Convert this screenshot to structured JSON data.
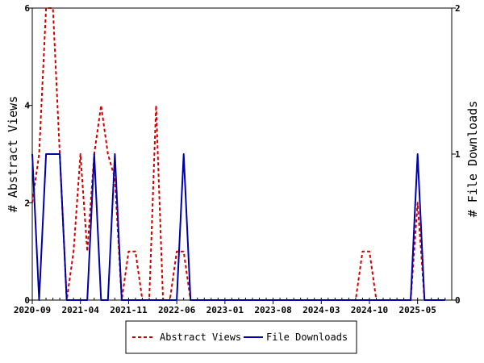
{
  "chart_data": {
    "type": "line",
    "x_tick_labels": [
      "2020-09",
      "2021-04",
      "2021-11",
      "2022-06",
      "2023-01",
      "2023-08",
      "2024-03",
      "2024-10",
      "2025-05"
    ],
    "y_left": {
      "label": "# Abstract Views",
      "range": [
        0,
        6
      ],
      "ticks": [
        "0",
        "2",
        "4",
        "6"
      ]
    },
    "y_right": {
      "label": "# File Downloads",
      "range": [
        0,
        2
      ],
      "ticks": [
        "0",
        "1",
        "2"
      ]
    },
    "grid": false,
    "legend_position": "bottom",
    "series": [
      {
        "name": "Abstract Views",
        "axis": "left",
        "style": "dashed",
        "color": "#cc0000",
        "points": [
          [
            "2020-09",
            2
          ],
          [
            "2020-10",
            3
          ],
          [
            "2020-11",
            6
          ],
          [
            "2020-12",
            6
          ],
          [
            "2021-01",
            3
          ],
          [
            "2021-02",
            0
          ],
          [
            "2021-03",
            1
          ],
          [
            "2021-04",
            3
          ],
          [
            "2021-05",
            1
          ],
          [
            "2021-06",
            3
          ],
          [
            "2021-07",
            4
          ],
          [
            "2021-08",
            3
          ],
          [
            "2021-09",
            2.5
          ],
          [
            "2021-10",
            0
          ],
          [
            "2021-11",
            1
          ],
          [
            "2021-12",
            1
          ],
          [
            "2022-01",
            0
          ],
          [
            "2022-02",
            0
          ],
          [
            "2022-03",
            4
          ],
          [
            "2022-04",
            0
          ],
          [
            "2022-05",
            0
          ],
          [
            "2022-06",
            1
          ],
          [
            "2022-07",
            1
          ],
          [
            "2022-08",
            0
          ],
          [
            "2022-09",
            0
          ],
          [
            "2022-10",
            0
          ],
          [
            "2022-11",
            0
          ],
          [
            "2022-12",
            0
          ],
          [
            "2023-01",
            0
          ],
          [
            "2023-02",
            0
          ],
          [
            "2023-03",
            0
          ],
          [
            "2023-04",
            0
          ],
          [
            "2023-05",
            0
          ],
          [
            "2023-06",
            0
          ],
          [
            "2023-07",
            0
          ],
          [
            "2023-08",
            0
          ],
          [
            "2023-09",
            0
          ],
          [
            "2023-10",
            0
          ],
          [
            "2023-11",
            0
          ],
          [
            "2023-12",
            0
          ],
          [
            "2024-01",
            0
          ],
          [
            "2024-02",
            0
          ],
          [
            "2024-03",
            0
          ],
          [
            "2024-04",
            0
          ],
          [
            "2024-05",
            0
          ],
          [
            "2024-06",
            0
          ],
          [
            "2024-07",
            0
          ],
          [
            "2024-08",
            0
          ],
          [
            "2024-09",
            1
          ],
          [
            "2024-10",
            1
          ],
          [
            "2024-11",
            0
          ],
          [
            "2024-12",
            0
          ],
          [
            "2025-01",
            0
          ],
          [
            "2025-02",
            0
          ],
          [
            "2025-03",
            0
          ],
          [
            "2025-04",
            0
          ],
          [
            "2025-05",
            2
          ],
          [
            "2025-06",
            0
          ],
          [
            "2025-07",
            0
          ],
          [
            "2025-08",
            0
          ],
          [
            "2025-09",
            0
          ]
        ]
      },
      {
        "name": "File Downloads",
        "axis": "right",
        "style": "solid",
        "color": "#0000aa",
        "points": [
          [
            "2020-09",
            1
          ],
          [
            "2020-10",
            0
          ],
          [
            "2020-11",
            1
          ],
          [
            "2020-12",
            1
          ],
          [
            "2021-01",
            1
          ],
          [
            "2021-02",
            0
          ],
          [
            "2021-03",
            0
          ],
          [
            "2021-04",
            0
          ],
          [
            "2021-05",
            0
          ],
          [
            "2021-06",
            1
          ],
          [
            "2021-07",
            0
          ],
          [
            "2021-08",
            0
          ],
          [
            "2021-09",
            1
          ],
          [
            "2021-10",
            0
          ],
          [
            "2021-11",
            0
          ],
          [
            "2021-12",
            0
          ],
          [
            "2022-01",
            0
          ],
          [
            "2022-02",
            0
          ],
          [
            "2022-03",
            0
          ],
          [
            "2022-04",
            0
          ],
          [
            "2022-05",
            0
          ],
          [
            "2022-06",
            0
          ],
          [
            "2022-07",
            1
          ],
          [
            "2022-08",
            0
          ],
          [
            "2022-09",
            0
          ],
          [
            "2022-10",
            0
          ],
          [
            "2022-11",
            0
          ],
          [
            "2022-12",
            0
          ],
          [
            "2023-01",
            0
          ],
          [
            "2023-02",
            0
          ],
          [
            "2023-03",
            0
          ],
          [
            "2023-04",
            0
          ],
          [
            "2023-05",
            0
          ],
          [
            "2023-06",
            0
          ],
          [
            "2023-07",
            0
          ],
          [
            "2023-08",
            0
          ],
          [
            "2023-09",
            0
          ],
          [
            "2023-10",
            0
          ],
          [
            "2023-11",
            0
          ],
          [
            "2023-12",
            0
          ],
          [
            "2024-01",
            0
          ],
          [
            "2024-02",
            0
          ],
          [
            "2024-03",
            0
          ],
          [
            "2024-04",
            0
          ],
          [
            "2024-05",
            0
          ],
          [
            "2024-06",
            0
          ],
          [
            "2024-07",
            0
          ],
          [
            "2024-08",
            0
          ],
          [
            "2024-09",
            0
          ],
          [
            "2024-10",
            0
          ],
          [
            "2024-11",
            0
          ],
          [
            "2024-12",
            0
          ],
          [
            "2025-01",
            0
          ],
          [
            "2025-02",
            0
          ],
          [
            "2025-03",
            0
          ],
          [
            "2025-04",
            0
          ],
          [
            "2025-05",
            1
          ],
          [
            "2025-06",
            0
          ],
          [
            "2025-07",
            0
          ],
          [
            "2025-08",
            0
          ],
          [
            "2025-09",
            0
          ]
        ]
      }
    ]
  }
}
